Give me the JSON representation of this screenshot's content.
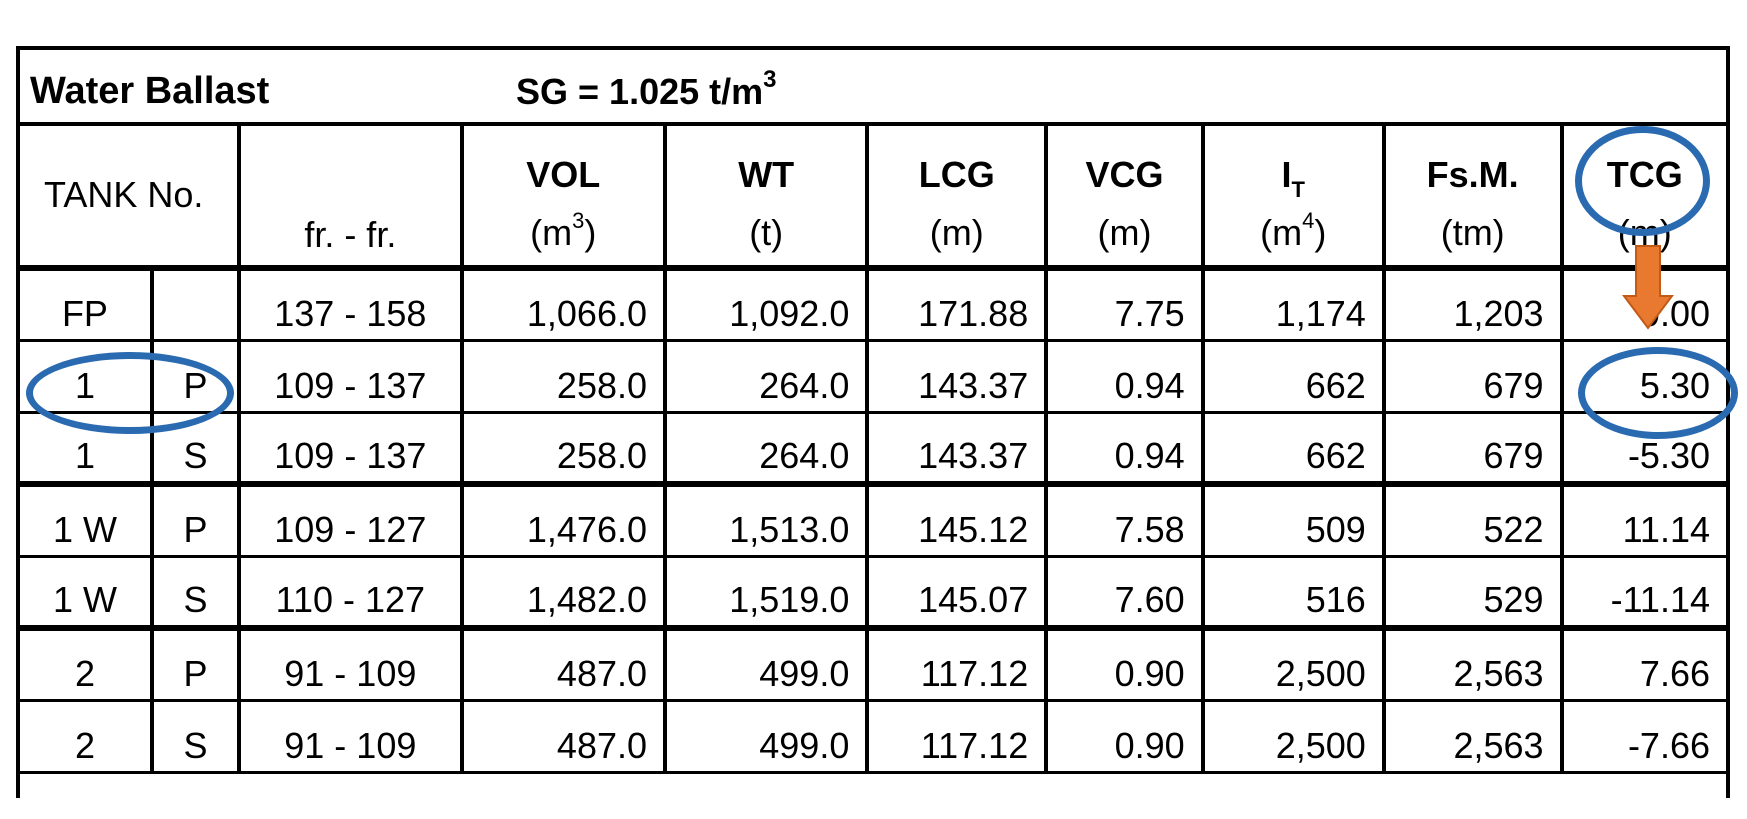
{
  "title": "Water Ballast",
  "sg_text": "SG  =  1.025 t/m",
  "sg_sup": "3",
  "headers": {
    "tank": "TANK  No.",
    "frames": "fr. - fr.",
    "vol": {
      "name": "VOL",
      "unit_base": "(m",
      "unit_sup": "3",
      "unit_end": ")"
    },
    "wt": {
      "name": "WT",
      "unit": "(t)"
    },
    "lcg": {
      "name": "LCG",
      "unit": "(m)"
    },
    "vcg": {
      "name": "VCG",
      "unit": "(m)"
    },
    "it": {
      "name": "I",
      "name_sub": "T",
      "unit_base": "(m",
      "unit_sup": "4",
      "unit_end": ")"
    },
    "fsm": {
      "name": "Fs.M.",
      "unit": "(tm)"
    },
    "tcg": {
      "name": "TCG",
      "unit": "(m)"
    }
  },
  "rows": [
    {
      "tank": "FP",
      "side": "",
      "frames": "137 - 158",
      "vol": "1,066.0",
      "wt": "1,092.0",
      "lcg": "171.88",
      "vcg": "7.75",
      "it": "1,174",
      "fsm": "1,203",
      "tcg": "0.00"
    },
    {
      "tank": "1",
      "side": "P",
      "frames": "109 - 137",
      "vol": "258.0",
      "wt": "264.0",
      "lcg": "143.37",
      "vcg": "0.94",
      "it": "662",
      "fsm": "679",
      "tcg": "5.30"
    },
    {
      "tank": "1",
      "side": "S",
      "frames": "109 - 137",
      "vol": "258.0",
      "wt": "264.0",
      "lcg": "143.37",
      "vcg": "0.94",
      "it": "662",
      "fsm": "679",
      "tcg": "-5.30"
    },
    {
      "tank": "1 W",
      "side": "P",
      "frames": "109 - 127",
      "vol": "1,476.0",
      "wt": "1,513.0",
      "lcg": "145.12",
      "vcg": "7.58",
      "it": "509",
      "fsm": "522",
      "tcg": "11.14"
    },
    {
      "tank": "1 W",
      "side": "S",
      "frames": "110 - 127",
      "vol": "1,482.0",
      "wt": "1,519.0",
      "lcg": "145.07",
      "vcg": "7.60",
      "it": "516",
      "fsm": "529",
      "tcg": "-11.14"
    },
    {
      "tank": "2",
      "side": "P",
      "frames": "91 - 109",
      "vol": "487.0",
      "wt": "499.0",
      "lcg": "117.12",
      "vcg": "0.90",
      "it": "2,500",
      "fsm": "2,563",
      "tcg": "7.66"
    },
    {
      "tank": "2",
      "side": "S",
      "frames": "91 - 109",
      "vol": "487.0",
      "wt": "499.0",
      "lcg": "117.12",
      "vcg": "0.90",
      "it": "2,500",
      "fsm": "2,563",
      "tcg": "-7.66"
    }
  ],
  "annotation_colors": {
    "oval": "#2a6ab0",
    "arrow": "#e8792f"
  }
}
